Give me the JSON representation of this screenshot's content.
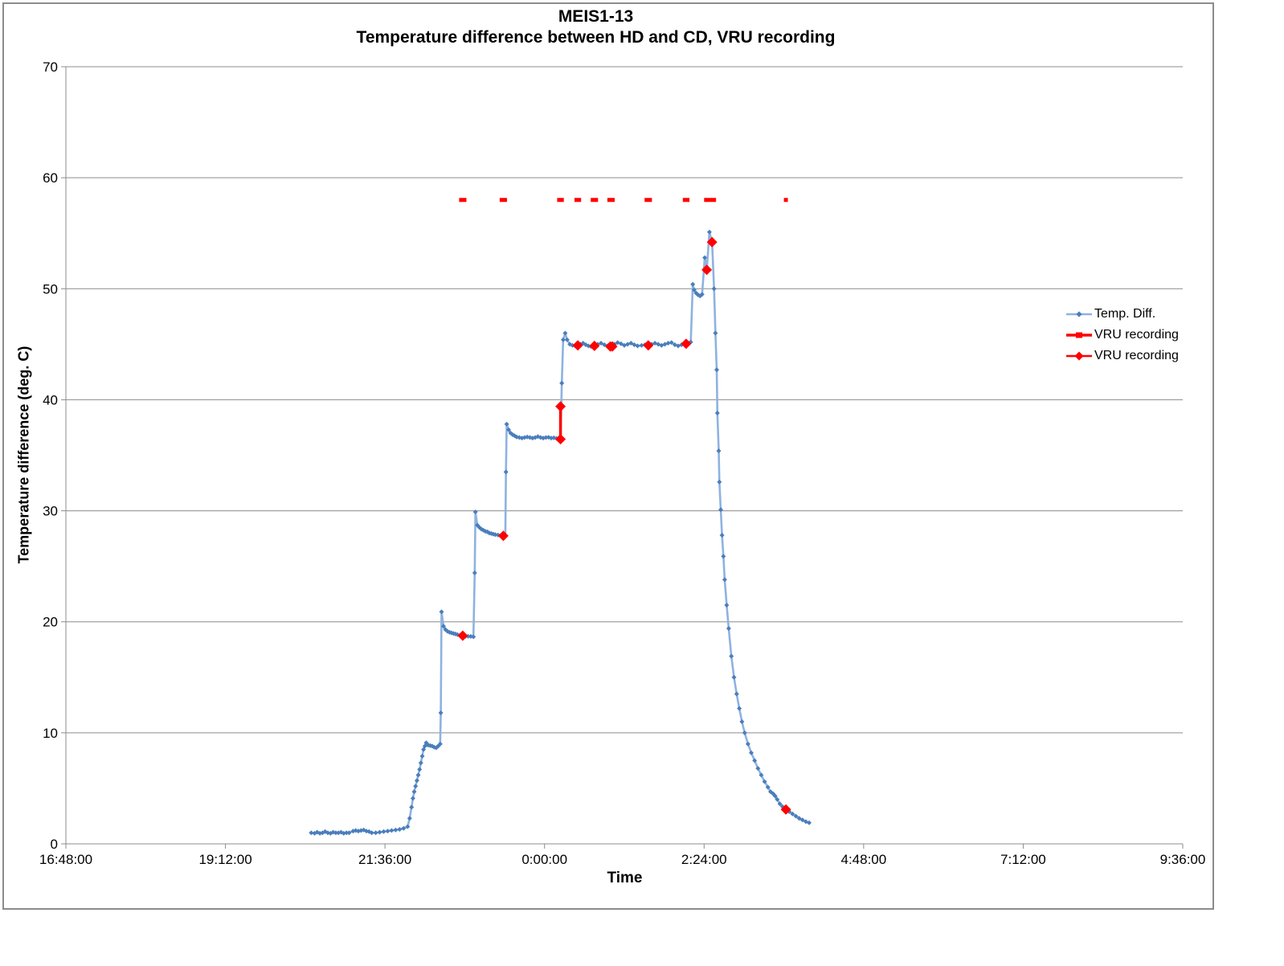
{
  "title": {
    "line1": "MEIS1-13",
    "line2": "Temperature  difference between HD and CD, VRU recording"
  },
  "axes": {
    "x_title": "Time",
    "y_title": "Temperature difference (deg. C)",
    "x_tick_labels": [
      "16:48:00",
      "19:12:00",
      "21:36:00",
      "0:00:00",
      "2:24:00",
      "4:48:00",
      "7:12:00",
      "9:36:00"
    ],
    "x_tick_hours": [
      16.8,
      19.2,
      21.6,
      24,
      26.4,
      28.8,
      31.2,
      33.6
    ],
    "y_ticks": [
      0,
      10,
      20,
      30,
      40,
      50,
      60,
      70
    ]
  },
  "legend": {
    "items": [
      {
        "label": "Temp. Diff."
      },
      {
        "label": "VRU recording"
      },
      {
        "label": "VRU recording"
      }
    ]
  },
  "colors": {
    "temp_line": "#8FB2E0",
    "temp_marker": "#4A7EBB",
    "vru_red": "#FF0000",
    "grid": "#8c8c8c",
    "axis": "#8c8c8c"
  },
  "chart_data": {
    "type": "line",
    "title": "MEIS1-13 — Temperature difference between HD and CD, VRU recording",
    "xlabel": "Time",
    "ylabel": "Temperature difference (deg. C)",
    "x_unit": "decimal hours; values > 24 are past midnight",
    "xlim": [
      16.8,
      33.6
    ],
    "ylim": [
      0,
      70
    ],
    "grid": "horizontal",
    "legend_position": "right",
    "series": [
      {
        "name": "Temp. Diff.",
        "style": "line_with_diamond_markers",
        "points": [
          [
            20.49,
            1.0
          ],
          [
            20.54,
            0.95
          ],
          [
            20.58,
            1.05
          ],
          [
            20.62,
            0.95
          ],
          [
            20.66,
            1.0
          ],
          [
            20.7,
            1.1
          ],
          [
            20.74,
            1.0
          ],
          [
            20.78,
            0.95
          ],
          [
            20.82,
            1.05
          ],
          [
            20.86,
            1.0
          ],
          [
            20.9,
            1.0
          ],
          [
            20.94,
            1.05
          ],
          [
            20.98,
            0.95
          ],
          [
            21.02,
            1.0
          ],
          [
            21.06,
            1.0
          ],
          [
            21.12,
            1.15
          ],
          [
            21.16,
            1.2
          ],
          [
            21.2,
            1.15
          ],
          [
            21.24,
            1.2
          ],
          [
            21.28,
            1.25
          ],
          [
            21.32,
            1.15
          ],
          [
            21.36,
            1.1
          ],
          [
            21.4,
            1.0
          ],
          [
            21.46,
            1.0
          ],
          [
            21.52,
            1.05
          ],
          [
            21.58,
            1.1
          ],
          [
            21.64,
            1.15
          ],
          [
            21.7,
            1.2
          ],
          [
            21.76,
            1.25
          ],
          [
            21.82,
            1.3
          ],
          [
            21.88,
            1.4
          ],
          [
            21.94,
            1.55
          ],
          [
            21.97,
            2.3
          ],
          [
            22.0,
            3.3
          ],
          [
            22.02,
            4.1
          ],
          [
            22.04,
            4.7
          ],
          [
            22.06,
            5.2
          ],
          [
            22.08,
            5.7
          ],
          [
            22.1,
            6.2
          ],
          [
            22.12,
            6.7
          ],
          [
            22.14,
            7.3
          ],
          [
            22.16,
            7.9
          ],
          [
            22.18,
            8.5
          ],
          [
            22.2,
            8.8
          ],
          [
            22.22,
            9.1
          ],
          [
            22.25,
            8.9
          ],
          [
            22.28,
            8.85
          ],
          [
            22.31,
            8.8
          ],
          [
            22.34,
            8.7
          ],
          [
            22.37,
            8.65
          ],
          [
            22.4,
            8.8
          ],
          [
            22.43,
            9.0
          ],
          [
            22.44,
            11.8
          ],
          [
            22.45,
            20.9
          ],
          [
            22.48,
            19.6
          ],
          [
            22.51,
            19.3
          ],
          [
            22.54,
            19.15
          ],
          [
            22.57,
            19.05
          ],
          [
            22.6,
            19.0
          ],
          [
            22.63,
            18.95
          ],
          [
            22.66,
            18.9
          ],
          [
            22.69,
            18.85
          ],
          [
            22.73,
            18.8
          ],
          [
            22.77,
            18.75
          ],
          [
            22.81,
            18.7
          ],
          [
            22.85,
            18.7
          ],
          [
            22.89,
            18.68
          ],
          [
            22.93,
            18.65
          ],
          [
            22.95,
            24.4
          ],
          [
            22.96,
            29.9
          ],
          [
            22.99,
            28.7
          ],
          [
            23.02,
            28.5
          ],
          [
            23.05,
            28.35
          ],
          [
            23.08,
            28.25
          ],
          [
            23.11,
            28.15
          ],
          [
            23.14,
            28.1
          ],
          [
            23.17,
            28.0
          ],
          [
            23.2,
            27.95
          ],
          [
            23.23,
            27.9
          ],
          [
            23.26,
            27.85
          ],
          [
            23.3,
            27.82
          ],
          [
            23.34,
            27.78
          ],
          [
            23.38,
            27.75
          ],
          [
            23.41,
            27.7
          ],
          [
            23.42,
            33.5
          ],
          [
            23.43,
            37.8
          ],
          [
            23.46,
            37.3
          ],
          [
            23.49,
            37.0
          ],
          [
            23.52,
            36.85
          ],
          [
            23.55,
            36.75
          ],
          [
            23.58,
            36.65
          ],
          [
            23.62,
            36.6
          ],
          [
            23.66,
            36.55
          ],
          [
            23.7,
            36.6
          ],
          [
            23.74,
            36.65
          ],
          [
            23.78,
            36.6
          ],
          [
            23.82,
            36.55
          ],
          [
            23.86,
            36.6
          ],
          [
            23.9,
            36.68
          ],
          [
            23.94,
            36.6
          ],
          [
            23.98,
            36.55
          ],
          [
            24.02,
            36.6
          ],
          [
            24.06,
            36.62
          ],
          [
            24.1,
            36.55
          ],
          [
            24.14,
            36.58
          ],
          [
            24.18,
            36.52
          ],
          [
            24.21,
            36.5
          ],
          [
            24.24,
            36.45
          ],
          [
            24.26,
            41.5
          ],
          [
            24.28,
            45.4
          ],
          [
            24.31,
            46.0
          ],
          [
            24.34,
            45.4
          ],
          [
            24.38,
            45.0
          ],
          [
            24.42,
            44.9
          ],
          [
            24.46,
            44.85
          ],
          [
            24.5,
            44.9
          ],
          [
            24.54,
            45.0
          ],
          [
            24.58,
            45.1
          ],
          [
            24.62,
            44.95
          ],
          [
            24.66,
            44.85
          ],
          [
            24.7,
            44.8
          ],
          [
            24.75,
            44.85
          ],
          [
            24.8,
            45.0
          ],
          [
            24.85,
            45.1
          ],
          [
            24.9,
            44.95
          ],
          [
            24.95,
            44.85
          ],
          [
            25.0,
            44.8
          ],
          [
            25.05,
            45.0
          ],
          [
            25.1,
            45.15
          ],
          [
            25.15,
            45.05
          ],
          [
            25.2,
            44.9
          ],
          [
            25.25,
            45.0
          ],
          [
            25.3,
            45.1
          ],
          [
            25.35,
            44.95
          ],
          [
            25.4,
            44.85
          ],
          [
            25.46,
            44.9
          ],
          [
            25.51,
            44.95
          ],
          [
            25.56,
            44.9
          ],
          [
            25.61,
            45.0
          ],
          [
            25.66,
            45.1
          ],
          [
            25.71,
            45.0
          ],
          [
            25.76,
            44.9
          ],
          [
            25.81,
            45.0
          ],
          [
            25.86,
            45.1
          ],
          [
            25.91,
            45.15
          ],
          [
            25.96,
            44.95
          ],
          [
            26.01,
            44.85
          ],
          [
            26.06,
            44.95
          ],
          [
            26.1,
            45.0
          ],
          [
            26.13,
            45.05
          ],
          [
            26.17,
            45.1
          ],
          [
            26.2,
            45.2
          ],
          [
            26.23,
            50.4
          ],
          [
            26.25,
            49.9
          ],
          [
            26.28,
            49.6
          ],
          [
            26.31,
            49.45
          ],
          [
            26.34,
            49.35
          ],
          [
            26.37,
            49.5
          ],
          [
            26.41,
            52.8
          ],
          [
            26.44,
            51.7
          ],
          [
            26.48,
            55.1
          ],
          [
            26.52,
            54.2
          ],
          [
            26.55,
            50.0
          ],
          [
            26.57,
            46.0
          ],
          [
            26.59,
            42.7
          ],
          [
            26.6,
            38.8
          ],
          [
            26.62,
            35.4
          ],
          [
            26.63,
            32.6
          ],
          [
            26.65,
            30.1
          ],
          [
            26.67,
            27.8
          ],
          [
            26.69,
            25.9
          ],
          [
            26.71,
            23.8
          ],
          [
            26.74,
            21.5
          ],
          [
            26.77,
            19.4
          ],
          [
            26.81,
            16.9
          ],
          [
            26.85,
            15.0
          ],
          [
            26.89,
            13.5
          ],
          [
            26.93,
            12.2
          ],
          [
            26.97,
            11.0
          ],
          [
            27.01,
            10.0
          ],
          [
            27.06,
            9.0
          ],
          [
            27.11,
            8.2
          ],
          [
            27.16,
            7.5
          ],
          [
            27.21,
            6.8
          ],
          [
            27.26,
            6.2
          ],
          [
            27.31,
            5.6
          ],
          [
            27.36,
            5.1
          ],
          [
            27.4,
            4.7
          ],
          [
            27.44,
            4.5
          ],
          [
            27.47,
            4.3
          ],
          [
            27.5,
            4.0
          ],
          [
            27.54,
            3.6
          ],
          [
            27.58,
            3.35
          ],
          [
            27.63,
            3.1
          ],
          [
            27.68,
            2.9
          ],
          [
            27.73,
            2.7
          ],
          [
            27.78,
            2.5
          ],
          [
            27.83,
            2.3
          ],
          [
            27.88,
            2.15
          ],
          [
            27.93,
            2.0
          ],
          [
            27.98,
            1.9
          ]
        ]
      },
      {
        "name": "VRU recording",
        "style": "horizontal_dash_marks",
        "y": 58,
        "dashes": [
          {
            "t": 22.77,
            "w": 0.11
          },
          {
            "t": 23.38,
            "w": 0.11
          },
          {
            "t": 24.24,
            "w": 0.1
          },
          {
            "t": 24.5,
            "w": 0.1
          },
          {
            "t": 24.75,
            "w": 0.11
          },
          {
            "t": 25.0,
            "w": 0.11
          },
          {
            "t": 25.56,
            "w": 0.11
          },
          {
            "t": 26.13,
            "w": 0.1
          },
          {
            "t": 26.49,
            "w": 0.18
          },
          {
            "t": 27.63,
            "w": 0.06
          }
        ]
      },
      {
        "name": "VRU recording",
        "style": "diamond_markers_on_curve",
        "points": [
          [
            22.77,
            18.75
          ],
          [
            23.38,
            27.75
          ],
          [
            24.5,
            44.9
          ],
          [
            24.75,
            44.85
          ],
          [
            24.99,
            44.8
          ],
          [
            25.02,
            44.8
          ],
          [
            25.56,
            44.9
          ],
          [
            26.13,
            45.05
          ],
          [
            26.44,
            51.7
          ],
          [
            26.52,
            54.2
          ],
          [
            27.63,
            3.1
          ]
        ],
        "segment": {
          "t": 24.24,
          "v1": 36.45,
          "v2": 39.4
        }
      }
    ]
  }
}
